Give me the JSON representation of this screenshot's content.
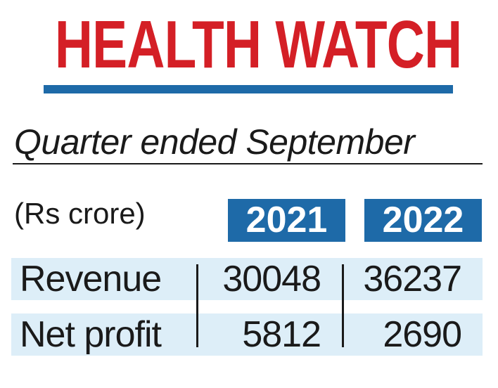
{
  "title": "HEALTH WATCH",
  "subtitle": "Quarter ended September",
  "unit_label": "(Rs crore)",
  "colors": {
    "title": "#d41f26",
    "accent_blue": "#1e6aa8",
    "row_background": "#ddeef8",
    "text": "#1a1a1a"
  },
  "chart_data": {
    "type": "table",
    "title": "HEALTH WATCH",
    "subtitle": "Quarter ended September",
    "unit": "(Rs crore)",
    "columns": [
      "2021",
      "2022"
    ],
    "rows": [
      {
        "label": "Revenue",
        "values": [
          "30048",
          "36237"
        ]
      },
      {
        "label": "Net profit",
        "values": [
          "5812",
          "2690"
        ]
      }
    ]
  }
}
